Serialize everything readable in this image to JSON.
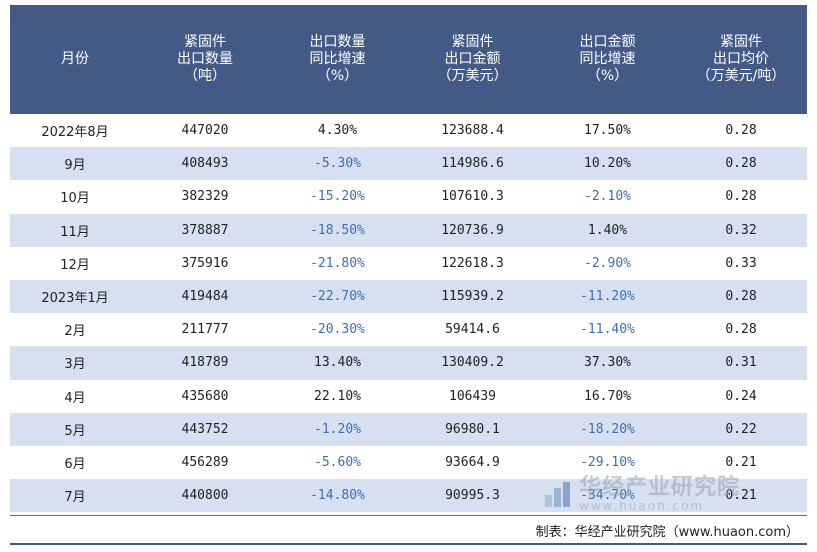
{
  "headers": [
    [
      "月份"
    ],
    [
      "紧固件",
      "出口数量",
      "（吨）"
    ],
    [
      "出口数量",
      "同比增速",
      "（%）"
    ],
    [
      "紧固件",
      "出口金额",
      "（万美元）"
    ],
    [
      "出口金额",
      "同比增速",
      "（%）"
    ],
    [
      "紧固件",
      "出口均价",
      "（万美元/吨）"
    ]
  ],
  "rows": [
    {
      "month": "2022年8月",
      "qty": "447020",
      "qty_yoy": "4.30%",
      "amount": "123688.4",
      "amount_yoy": "17.50%",
      "price": "0.28"
    },
    {
      "month": "9月",
      "qty": "408493",
      "qty_yoy": "-5.30%",
      "amount": "114986.6",
      "amount_yoy": "10.20%",
      "price": "0.28"
    },
    {
      "month": "10月",
      "qty": "382329",
      "qty_yoy": "-15.20%",
      "amount": "107610.3",
      "amount_yoy": "-2.10%",
      "price": "0.28"
    },
    {
      "month": "11月",
      "qty": "378887",
      "qty_yoy": "-18.50%",
      "amount": "120736.9",
      "amount_yoy": "1.40%",
      "price": "0.32"
    },
    {
      "month": "12月",
      "qty": "375916",
      "qty_yoy": "-21.80%",
      "amount": "122618.3",
      "amount_yoy": "-2.90%",
      "price": "0.33"
    },
    {
      "month": "2023年1月",
      "qty": "419484",
      "qty_yoy": "-22.70%",
      "amount": "115939.2",
      "amount_yoy": "-11.20%",
      "price": "0.28"
    },
    {
      "month": "2月",
      "qty": "211777",
      "qty_yoy": "-20.30%",
      "amount": "59414.6",
      "amount_yoy": "-11.40%",
      "price": "0.28"
    },
    {
      "month": "3月",
      "qty": "418789",
      "qty_yoy": "13.40%",
      "amount": "130409.2",
      "amount_yoy": "37.30%",
      "price": "0.31"
    },
    {
      "month": "4月",
      "qty": "435680",
      "qty_yoy": "22.10%",
      "amount": "106439",
      "amount_yoy": "16.70%",
      "price": "0.24"
    },
    {
      "month": "5月",
      "qty": "443752",
      "qty_yoy": "-1.20%",
      "amount": "96980.1",
      "amount_yoy": "-18.20%",
      "price": "0.22"
    },
    {
      "month": "6月",
      "qty": "456289",
      "qty_yoy": "-5.60%",
      "amount": "93664.9",
      "amount_yoy": "-29.10%",
      "price": "0.21"
    },
    {
      "month": "7月",
      "qty": "440800",
      "qty_yoy": "-14.80%",
      "amount": "90995.3",
      "amount_yoy": "-34.70%",
      "price": "0.21"
    }
  ],
  "footer": {
    "source": "制表：华经产业研究院（www.huaon.com）"
  },
  "watermark": {
    "name": "华经产业研究院",
    "url": "www.huaon.com"
  },
  "colors": {
    "header_bg": "#445a86",
    "stripe_bg": "#d6e0f0",
    "negative_text": "#3f6db5"
  }
}
